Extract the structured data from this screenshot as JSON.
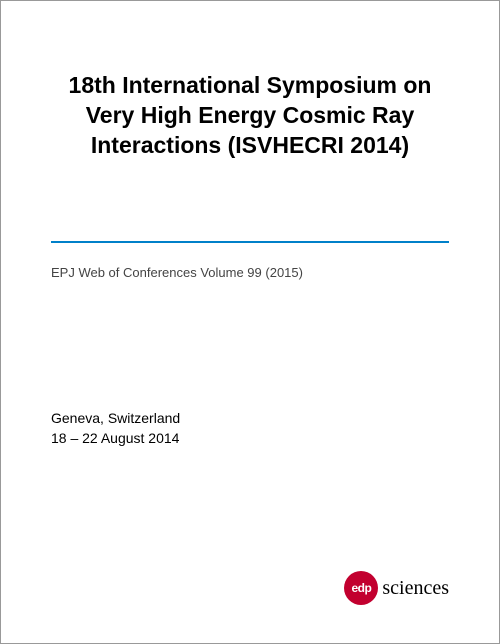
{
  "title": "18th International Symposium on Very High Energy Cosmic Ray Interactions (ISVHECRI 2014)",
  "subtitle": "EPJ Web of Conferences Volume 99 (2015)",
  "location": "Geneva, Switzerland",
  "dates": "18 – 22 August 2014",
  "rule_color": "#0080c9",
  "logo": {
    "mark_text": "edp",
    "mark_color": "#c2002f",
    "word": "sciences"
  }
}
